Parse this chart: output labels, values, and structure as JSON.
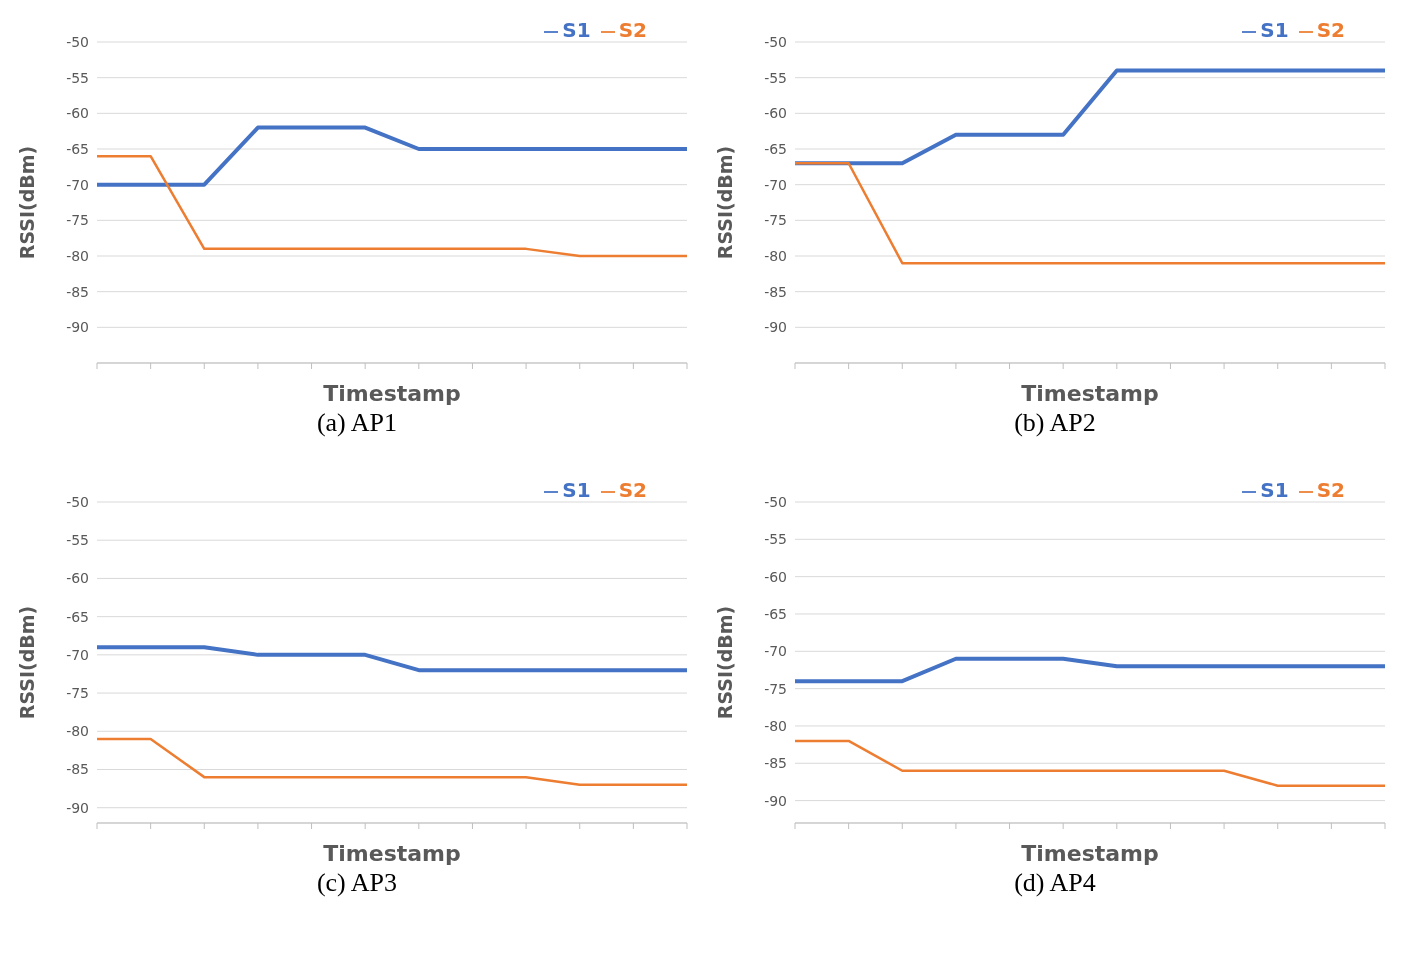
{
  "chart_data": [
    {
      "type": "line",
      "title": "(a)  AP1",
      "xlabel": "Timestamp",
      "ylabel": "RSSI(dBm)",
      "categories": [
        null,
        null,
        null,
        null,
        null,
        null,
        null,
        null,
        null,
        null,
        null,
        null
      ],
      "series": [
        {
          "name": "S1",
          "color": "#4472c4",
          "values": [
            -70,
            -70,
            -70,
            -62,
            -62,
            -62,
            -65,
            -65,
            -65,
            -65,
            -65,
            -65
          ]
        },
        {
          "name": "S2",
          "color": "#ed7d31",
          "values": [
            -66,
            -66,
            -79,
            -79,
            -79,
            -79,
            -79,
            -79,
            -79,
            -80,
            -80,
            -80
          ]
        }
      ],
      "ylim": [
        -95,
        -50
      ],
      "yticks": [
        -90,
        -85,
        -80,
        -75,
        -70,
        -65,
        -60,
        -55,
        -50
      ],
      "grid": "y",
      "legend": "top right",
      "marker": "none",
      "line_style": "solid"
    },
    {
      "type": "line",
      "title": "(b) AP2",
      "xlabel": "Timestamp",
      "ylabel": "RSSI(dBm)",
      "categories": [
        null,
        null,
        null,
        null,
        null,
        null,
        null,
        null,
        null,
        null,
        null,
        null
      ],
      "series": [
        {
          "name": "S1",
          "color": "#4472c4",
          "values": [
            -67,
            -67,
            -67,
            -63,
            -63,
            -63,
            -54,
            -54,
            -54,
            -54,
            -54,
            -54
          ]
        },
        {
          "name": "S2",
          "color": "#ed7d31",
          "values": [
            -67,
            -67,
            -81,
            -81,
            -81,
            -81,
            -81,
            -81,
            -81,
            -81,
            -81,
            -81
          ]
        }
      ],
      "ylim": [
        -95,
        -50
      ],
      "yticks": [
        -90,
        -85,
        -80,
        -75,
        -70,
        -65,
        -60,
        -55,
        -50
      ],
      "grid": "y",
      "legend": "top right",
      "marker": "none",
      "line_style": "solid"
    },
    {
      "type": "line",
      "title": "(c)  AP3",
      "xlabel": "Timestamp",
      "ylabel": "RSSI(dBm)",
      "categories": [
        null,
        null,
        null,
        null,
        null,
        null,
        null,
        null,
        null,
        null,
        null,
        null
      ],
      "series": [
        {
          "name": "S1",
          "color": "#4472c4",
          "values": [
            -69,
            -69,
            -69,
            -70,
            -70,
            -70,
            -72,
            -72,
            -72,
            -72,
            -72,
            -72
          ]
        },
        {
          "name": "S2",
          "color": "#ed7d31",
          "values": [
            -81,
            -81,
            -86,
            -86,
            -86,
            -86,
            -86,
            -86,
            -86,
            -87,
            -87,
            -87
          ]
        }
      ],
      "ylim": [
        -92,
        -50
      ],
      "yticks": [
        -90,
        -85,
        -80,
        -75,
        -70,
        -65,
        -60,
        -55,
        -50
      ],
      "grid": "y",
      "legend": "top right",
      "marker": "none",
      "line_style": "solid"
    },
    {
      "type": "line",
      "title": "(d) AP4",
      "xlabel": "Timestamp",
      "ylabel": "RSSI(dBm)",
      "categories": [
        null,
        null,
        null,
        null,
        null,
        null,
        null,
        null,
        null,
        null,
        null,
        null
      ],
      "series": [
        {
          "name": "S1",
          "color": "#4472c4",
          "values": [
            -74,
            -74,
            -74,
            -71,
            -71,
            -71,
            -72,
            -72,
            -72,
            -72,
            -72,
            -72
          ]
        },
        {
          "name": "S2",
          "color": "#ed7d31",
          "values": [
            -82,
            -82,
            -86,
            -86,
            -86,
            -86,
            -86,
            -86,
            -86,
            -88,
            -88,
            -88
          ]
        }
      ],
      "ylim": [
        -93,
        -50
      ],
      "yticks": [
        -90,
        -85,
        -80,
        -75,
        -70,
        -65,
        -60,
        -55,
        -50
      ],
      "grid": "y",
      "legend": "top right",
      "marker": "none",
      "line_style": "solid"
    }
  ]
}
